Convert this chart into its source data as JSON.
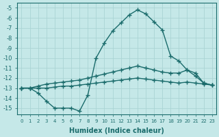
{
  "xlabel": "Humidex (Indice chaleur)",
  "ylabel": "",
  "xlim": [
    -0.5,
    23.5
  ],
  "ylim": [
    -15.6,
    -4.5
  ],
  "yticks": [
    -5,
    -6,
    -7,
    -8,
    -9,
    -10,
    -11,
    -12,
    -13,
    -14,
    -15
  ],
  "xticks": [
    0,
    1,
    2,
    3,
    4,
    5,
    6,
    7,
    8,
    9,
    10,
    11,
    12,
    13,
    14,
    15,
    16,
    17,
    18,
    19,
    20,
    21,
    22,
    23
  ],
  "bg_color": "#c5e8e8",
  "grid_color": "#aad4d4",
  "line_color": "#1a6b6b",
  "lines": [
    {
      "x": [
        0,
        1,
        2,
        3,
        4,
        5,
        6,
        7,
        8,
        9,
        10,
        11,
        12,
        13,
        14,
        15,
        16,
        17,
        18,
        19,
        20,
        21,
        22,
        23
      ],
      "y": [
        -13,
        -13,
        -13.5,
        -14.3,
        -15.0,
        -15.0,
        -15.0,
        -15.3,
        -13.7,
        -10.0,
        -8.5,
        -7.3,
        -6.5,
        -5.7,
        -5.2,
        -5.6,
        -6.4,
        -7.2,
        -9.8,
        -10.3,
        -11.2,
        -11.8,
        -12.5,
        -12.7
      ]
    },
    {
      "x": [
        0,
        1,
        2,
        3,
        4,
        5,
        6,
        7,
        8,
        9,
        10,
        11,
        12,
        13,
        14,
        15,
        16,
        17,
        18,
        19,
        20,
        21,
        22,
        23
      ],
      "y": [
        -13,
        -13,
        -12.8,
        -12.6,
        -12.5,
        -12.4,
        -12.3,
        -12.2,
        -12.0,
        -11.8,
        -11.6,
        -11.4,
        -11.2,
        -11.0,
        -10.8,
        -11.0,
        -11.2,
        -11.4,
        -11.5,
        -11.5,
        -11.2,
        -11.5,
        -12.5,
        -12.7
      ]
    },
    {
      "x": [
        0,
        1,
        2,
        3,
        4,
        5,
        6,
        7,
        8,
        9,
        10,
        11,
        12,
        13,
        14,
        15,
        16,
        17,
        18,
        19,
        20,
        21,
        22,
        23
      ],
      "y": [
        -13,
        -13,
        -13.0,
        -13.0,
        -12.9,
        -12.8,
        -12.8,
        -12.7,
        -12.6,
        -12.5,
        -12.4,
        -12.3,
        -12.2,
        -12.1,
        -12.0,
        -12.1,
        -12.2,
        -12.3,
        -12.4,
        -12.5,
        -12.4,
        -12.5,
        -12.6,
        -12.7
      ]
    }
  ],
  "marker": "+",
  "markersize": 4,
  "linewidth": 1.0
}
